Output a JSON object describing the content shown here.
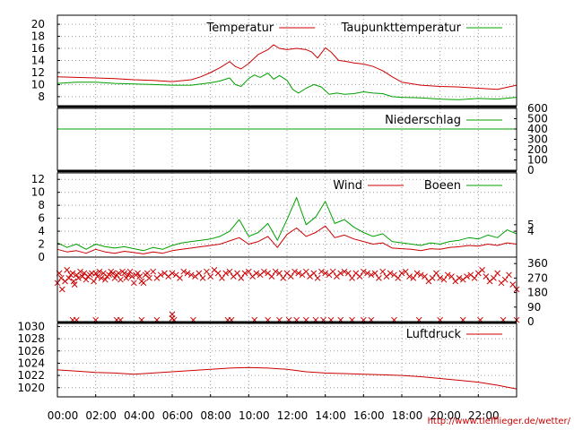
{
  "footer_url": "http://www.tiefflieger.de/wetter/",
  "colors": {
    "red": "#cc0000",
    "green": "#00a000"
  },
  "x_axis": {
    "range": [
      0,
      24
    ],
    "ticks": [
      0,
      2,
      4,
      6,
      8,
      10,
      12,
      14,
      16,
      18,
      20,
      22
    ],
    "tick_labels": [
      "00:00",
      "02:00",
      "04:00",
      "06:00",
      "08:00",
      "10:00",
      "12:00",
      "14:00",
      "16:00",
      "18:00",
      "20:00",
      "22:00"
    ]
  },
  "chart_data": [
    {
      "type": "line",
      "panel": "temperature",
      "legend_placement": "top-right",
      "ylim": [
        6.5,
        21.5
      ],
      "y_ticks": [
        8,
        10,
        12,
        14,
        16,
        18,
        20
      ],
      "y_tick_labels": [
        "8",
        "10",
        "12",
        "14",
        "16",
        "18",
        "20"
      ],
      "grid": true,
      "series": [
        {
          "name": "Temperatur",
          "color": "#cc0000",
          "x": [
            0,
            1,
            2,
            3,
            4,
            5,
            6,
            7,
            7.5,
            8,
            8.5,
            9,
            9.3,
            9.6,
            10,
            10.5,
            11,
            11.3,
            11.6,
            12,
            12.5,
            13,
            13.3,
            13.6,
            14,
            14.3,
            14.7,
            15,
            15.5,
            16,
            16.5,
            17,
            17.5,
            18,
            19,
            20,
            21,
            22,
            23,
            24
          ],
          "y": [
            11.3,
            11.2,
            11.1,
            11.0,
            10.8,
            10.7,
            10.5,
            10.8,
            11.3,
            12.0,
            12.8,
            13.8,
            13.0,
            12.6,
            13.5,
            15.0,
            15.8,
            16.6,
            16.0,
            15.8,
            16.0,
            15.8,
            15.4,
            14.4,
            16.1,
            15.4,
            14.0,
            13.9,
            13.6,
            13.4,
            13.0,
            12.3,
            11.3,
            10.4,
            9.9,
            9.7,
            9.6,
            9.4,
            9.2,
            9.9
          ]
        },
        {
          "name": "Taupunkttemperatur",
          "color": "#00a000",
          "x": [
            0,
            1,
            2,
            3,
            4,
            5,
            6,
            7,
            8,
            8.5,
            9,
            9.3,
            9.6,
            10,
            10.3,
            10.6,
            11,
            11.3,
            11.6,
            12,
            12.3,
            12.6,
            13,
            13.4,
            13.8,
            14.2,
            14.6,
            15,
            15.5,
            16,
            16.5,
            17,
            17.5,
            18,
            19,
            20,
            21,
            22,
            23,
            24
          ],
          "y": [
            10.2,
            10.4,
            10.4,
            10.2,
            10.1,
            10.0,
            9.9,
            9.9,
            10.3,
            10.6,
            11.1,
            10.0,
            9.7,
            11.0,
            11.6,
            11.2,
            11.9,
            10.9,
            11.5,
            10.7,
            9.2,
            8.6,
            9.4,
            10.0,
            9.6,
            8.4,
            8.6,
            8.4,
            8.5,
            8.8,
            8.6,
            8.5,
            8.0,
            7.9,
            7.8,
            7.6,
            7.5,
            7.7,
            7.6,
            7.9
          ]
        }
      ]
    },
    {
      "type": "line",
      "panel": "precipitation",
      "legend_placement": "top-right",
      "ylim": [
        0,
        600
      ],
      "y_ticks": [
        0,
        100,
        200,
        300,
        400,
        500,
        600
      ],
      "y_tick_labels": [
        "0",
        "100",
        "200",
        "300",
        "400",
        "500",
        "600"
      ],
      "grid": false,
      "series": [
        {
          "name": "Niederschlag",
          "color": "#00a000",
          "x": [
            0,
            24
          ],
          "y": [
            400,
            400
          ]
        }
      ]
    },
    {
      "type": "line",
      "panel": "wind",
      "legend_placement": "top-right",
      "ylim": [
        0,
        13
      ],
      "y_ticks": [
        0,
        2,
        4,
        6,
        8,
        10,
        12
      ],
      "y_tick_labels": [
        "0",
        "2",
        "4",
        "6",
        "8",
        "10",
        "12"
      ],
      "right_ticks": [
        4,
        5
      ],
      "right_tick_labels": [
        "4",
        "5"
      ],
      "grid": true,
      "series": [
        {
          "name": "Wind",
          "color": "#cc0000",
          "x": [
            0,
            0.5,
            1,
            1.5,
            2,
            2.5,
            3,
            3.5,
            4,
            4.5,
            5,
            5.5,
            6,
            6.5,
            7,
            7.5,
            8,
            8.5,
            9,
            9.5,
            10,
            10.5,
            11,
            11.5,
            12,
            12.5,
            13,
            13.5,
            14,
            14.5,
            15,
            15.5,
            16,
            16.5,
            17,
            17.5,
            18,
            18.5,
            19,
            19.5,
            20,
            20.5,
            21,
            21.5,
            22,
            22.5,
            23,
            23.5,
            24
          ],
          "y": [
            1.2,
            0.8,
            1.0,
            0.6,
            1.2,
            0.8,
            0.6,
            0.9,
            0.7,
            0.5,
            0.8,
            0.6,
            1.0,
            1.2,
            1.4,
            1.6,
            1.8,
            2.0,
            2.5,
            3.0,
            2.0,
            2.4,
            3.2,
            1.5,
            3.5,
            4.5,
            3.2,
            3.8,
            4.8,
            3.0,
            3.4,
            2.8,
            2.4,
            2.0,
            2.2,
            1.4,
            1.3,
            1.2,
            1.0,
            1.3,
            1.2,
            1.5,
            1.6,
            1.8,
            1.7,
            2.0,
            1.8,
            2.2,
            2.0
          ]
        },
        {
          "name": "Boeen",
          "color": "#00a000",
          "x": [
            0,
            0.5,
            1,
            1.5,
            2,
            2.5,
            3,
            3.5,
            4,
            4.5,
            5,
            5.5,
            6,
            6.5,
            7,
            7.5,
            8,
            8.5,
            9,
            9.5,
            10,
            10.5,
            11,
            11.5,
            12,
            12.5,
            13,
            13.5,
            14,
            14.5,
            15,
            15.5,
            16,
            16.5,
            17,
            17.5,
            18,
            18.5,
            19,
            19.5,
            20,
            20.5,
            21,
            21.5,
            22,
            22.5,
            23,
            23.5,
            24
          ],
          "y": [
            2.2,
            1.5,
            2.0,
            1.2,
            2.0,
            1.6,
            1.4,
            1.6,
            1.3,
            1.0,
            1.5,
            1.2,
            1.8,
            2.2,
            2.4,
            2.6,
            2.8,
            3.2,
            4.0,
            5.8,
            3.2,
            3.8,
            5.2,
            2.6,
            5.8,
            9.2,
            5.0,
            6.2,
            8.6,
            5.2,
            5.8,
            4.6,
            3.8,
            3.2,
            3.6,
            2.4,
            2.2,
            2.0,
            1.8,
            2.2,
            2.0,
            2.4,
            2.6,
            3.0,
            2.8,
            3.4,
            3.0,
            4.2,
            3.6
          ]
        }
      ]
    },
    {
      "type": "scatter",
      "panel": "wind_direction",
      "ylim": [
        0,
        400
      ],
      "right_ticks": [
        0,
        90,
        180,
        270,
        360
      ],
      "right_tick_labels": [
        "0",
        "90",
        "180",
        "270",
        "360"
      ],
      "grid": false,
      "series": [
        {
          "color": "#cc0000",
          "x": [
            0,
            0.1,
            0.2,
            0.25,
            0.4,
            0.5,
            0.6,
            0.7,
            0.8,
            0.85,
            0.9,
            1.0,
            1.1,
            1.2,
            1.3,
            1.4,
            1.5,
            1.6,
            1.7,
            1.8,
            1.9,
            2.0,
            2.1,
            2.2,
            2.3,
            2.4,
            2.5,
            2.6,
            2.7,
            2.8,
            2.9,
            3.0,
            3.1,
            3.2,
            3.3,
            3.4,
            3.5,
            3.6,
            3.7,
            3.8,
            3.9,
            4.0,
            4.1,
            4.2,
            4.3,
            4.4,
            4.5,
            4.6,
            4.7,
            4.8,
            5.0,
            5.2,
            5.4,
            5.6,
            5.8,
            6.0,
            6.2,
            6.4,
            6.6,
            6.8,
            7.0,
            7.2,
            7.4,
            7.6,
            7.8,
            8.0,
            8.2,
            8.4,
            8.6,
            8.8,
            9.0,
            9.2,
            9.4,
            9.6,
            9.8,
            10.0,
            10.2,
            10.4,
            10.6,
            10.8,
            11.0,
            11.2,
            11.4,
            11.6,
            11.8,
            12.0,
            12.2,
            12.4,
            12.6,
            12.8,
            13.0,
            13.2,
            13.4,
            13.6,
            13.8,
            14.0,
            14.2,
            14.4,
            14.6,
            14.8,
            15.0,
            15.2,
            15.4,
            15.6,
            15.8,
            16.0,
            16.2,
            16.4,
            16.6,
            16.8,
            17.0,
            17.2,
            17.4,
            17.6,
            17.8,
            18.0,
            18.2,
            18.4,
            18.6,
            18.8,
            19.0,
            19.2,
            19.4,
            19.6,
            19.8,
            20.0,
            20.2,
            20.4,
            20.6,
            20.8,
            21.0,
            21.2,
            21.4,
            21.6,
            21.8,
            22.0,
            22.2,
            22.4,
            22.6,
            22.8,
            23.0,
            23.2,
            23.4,
            23.6,
            23.8,
            24.0,
            0.8,
            1.0,
            2.0,
            3.1,
            3.3,
            4.4,
            5.2,
            6.1,
            6.0,
            7.1,
            8.9,
            9.1,
            10.3,
            11.0,
            11.6,
            12.1,
            12.5,
            13.0,
            13.5,
            13.9,
            14.3,
            14.8,
            15.4,
            16.0,
            16.4,
            17.6,
            18.9,
            20.0,
            21.2,
            22.1,
            23.3,
            24.0,
            6.0
          ],
          "y": [
            240,
            300,
            270,
            200,
            250,
            320,
            270,
            290,
            300,
            250,
            230,
            290,
            270,
            310,
            280,
            300,
            260,
            280,
            290,
            300,
            250,
            300,
            280,
            310,
            270,
            300,
            260,
            280,
            290,
            310,
            300,
            270,
            290,
            300,
            260,
            310,
            300,
            270,
            290,
            310,
            280,
            240,
            290,
            300,
            280,
            250,
            240,
            290,
            300,
            270,
            310,
            270,
            290,
            300,
            280,
            300,
            290,
            270,
            310,
            300,
            290,
            280,
            300,
            270,
            310,
            280,
            320,
            300,
            270,
            300,
            310,
            280,
            300,
            270,
            300,
            310,
            280,
            300,
            290,
            310,
            300,
            280,
            310,
            300,
            270,
            300,
            280,
            310,
            300,
            290,
            310,
            280,
            300,
            270,
            310,
            300,
            290,
            310,
            280,
            300,
            310,
            300,
            270,
            300,
            280,
            310,
            300,
            290,
            300,
            270,
            310,
            280,
            300,
            290,
            270,
            300,
            310,
            280,
            270,
            300,
            290,
            280,
            250,
            270,
            300,
            270,
            260,
            290,
            280,
            250,
            270,
            260,
            280,
            290,
            270,
            300,
            320,
            280,
            250,
            270,
            300,
            240,
            260,
            290,
            230,
            200,
            10,
            10,
            10,
            10,
            10,
            10,
            10,
            10,
            20,
            10,
            10,
            10,
            10,
            10,
            10,
            10,
            10,
            10,
            10,
            10,
            10,
            10,
            10,
            10,
            10,
            10,
            10,
            10,
            10,
            10,
            10,
            10,
            45
          ]
        }
      ]
    },
    {
      "type": "line",
      "panel": "pressure",
      "legend_placement": "top-right",
      "ylim": [
        1018.5,
        1030.5
      ],
      "y_ticks": [
        1020,
        1022,
        1024,
        1026,
        1028,
        1030
      ],
      "y_tick_labels": [
        "1020",
        "1022",
        "1024",
        "1026",
        "1028",
        "1030"
      ],
      "grid": true,
      "series": [
        {
          "name": "Luftdruck",
          "color": "#cc0000",
          "x": [
            0,
            1,
            2,
            3,
            4,
            5,
            6,
            7,
            8,
            9,
            10,
            11,
            12,
            13,
            14,
            15,
            16,
            17,
            18,
            19,
            20,
            21,
            22,
            23,
            23.5,
            24
          ],
          "y": [
            1022.9,
            1022.7,
            1022.5,
            1022.4,
            1022.2,
            1022.4,
            1022.6,
            1022.8,
            1023.0,
            1023.2,
            1023.3,
            1023.2,
            1023.0,
            1022.6,
            1022.4,
            1022.3,
            1022.2,
            1022.1,
            1022.0,
            1021.8,
            1021.5,
            1021.2,
            1020.9,
            1020.4,
            1020.1,
            1019.8
          ]
        }
      ]
    }
  ]
}
